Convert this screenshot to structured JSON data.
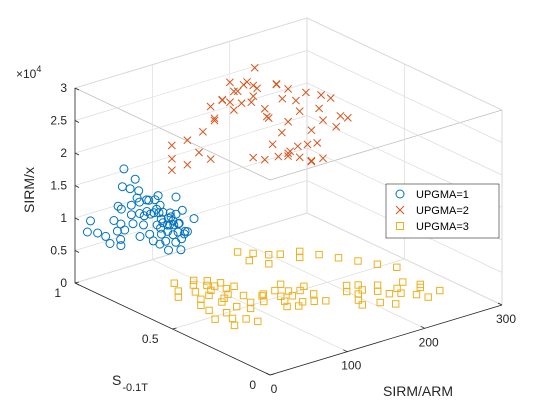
{
  "chart_data": {
    "type": "scatter",
    "title": "",
    "xlabel": "SIRM/ARM",
    "ylabel": "S",
    "ylabel_sub": "-0.1T",
    "zlabel": "SIRM/x",
    "z_exponent_label": "×10",
    "z_exponent_power": "4",
    "xlim": [
      0,
      300
    ],
    "ylim": [
      0,
      1
    ],
    "zlim": [
      0,
      30000
    ],
    "x_ticks": [
      "0",
      "100",
      "200",
      "300"
    ],
    "y_ticks": [
      "0",
      "0.5",
      "1"
    ],
    "z_ticks": [
      "0",
      "0.5",
      "1",
      "1.5",
      "2",
      "2.5",
      "3"
    ],
    "grid": true,
    "legend_position": "right",
    "series": [
      {
        "name": "UPGMA=1",
        "marker": "circle",
        "color": "#0072BD",
        "points": [
          [
            27,
            0.72,
            13600
          ],
          [
            33,
            0.68,
            12600
          ],
          [
            29,
            0.64,
            12000
          ],
          [
            36,
            0.7,
            12800
          ],
          [
            22,
            0.79,
            11300
          ],
          [
            40,
            0.74,
            13600
          ],
          [
            31,
            0.62,
            11700
          ],
          [
            45,
            0.7,
            12600
          ],
          [
            18,
            0.67,
            10500
          ],
          [
            38,
            0.59,
            12000
          ],
          [
            42,
            0.8,
            14100
          ],
          [
            26,
            0.56,
            10400
          ],
          [
            35,
            0.77,
            13000
          ],
          [
            48,
            0.66,
            12200
          ],
          [
            23,
            0.74,
            11800
          ],
          [
            30,
            0.83,
            13300
          ],
          [
            37,
            0.64,
            12700
          ],
          [
            44,
            0.61,
            11900
          ],
          [
            20,
            0.6,
            10000
          ],
          [
            28,
            0.69,
            12300
          ],
          [
            34,
            0.73,
            13400
          ],
          [
            39,
            0.67,
            12200
          ],
          [
            25,
            0.81,
            12300
          ],
          [
            47,
            0.75,
            13800
          ],
          [
            32,
            0.58,
            11600
          ],
          [
            43,
            0.72,
            13300
          ],
          [
            21,
            0.7,
            11000
          ],
          [
            36,
            0.86,
            15200
          ],
          [
            41,
            0.66,
            12900
          ],
          [
            29,
            0.76,
            12700
          ],
          [
            24,
            0.63,
            10800
          ],
          [
            46,
            0.69,
            12900
          ],
          [
            33,
            0.8,
            14100
          ],
          [
            38,
            0.72,
            13400
          ],
          [
            27,
            0.59,
            11100
          ],
          [
            31,
            0.88,
            15400
          ],
          [
            50,
            0.71,
            13100
          ],
          [
            35,
            0.61,
            12100
          ],
          [
            22,
            0.85,
            12700
          ],
          [
            40,
            0.78,
            14400
          ],
          [
            16,
            0.73,
            10400
          ],
          [
            44,
            0.64,
            12700
          ],
          [
            30,
            0.68,
            11900
          ],
          [
            37,
            0.82,
            15400
          ],
          [
            26,
            0.66,
            11400
          ],
          [
            42,
            0.59,
            12200
          ],
          [
            19,
            0.64,
            10400
          ],
          [
            34,
            0.66,
            12500
          ],
          [
            48,
            0.78,
            14200
          ],
          [
            28,
            0.78,
            12800
          ],
          [
            6,
            0.96,
            8200
          ],
          [
            9,
            0.92,
            8500
          ],
          [
            12,
            0.89,
            8300
          ],
          [
            10,
            0.86,
            7700
          ],
          [
            14,
            0.82,
            7800
          ],
          [
            15,
            0.98,
            9300
          ],
          [
            55,
            0.7,
            15500
          ],
          [
            58,
            0.62,
            13200
          ],
          [
            53,
            0.66,
            14100
          ],
          [
            60,
            0.72,
            12400
          ],
          [
            38,
            0.9,
            17600
          ],
          [
            45,
            0.87,
            16200
          ],
          [
            40,
            0.84,
            13900
          ],
          [
            11,
            0.81,
            9000
          ],
          [
            52,
            0.78,
            14700
          ],
          [
            24,
            0.86,
            10200
          ],
          [
            20,
            0.88,
            10600
          ],
          [
            17,
            0.85,
            9500
          ],
          [
            29,
            0.86,
            9100
          ],
          [
            33,
            0.91,
            11900
          ]
        ]
      },
      {
        "name": "UPGMA=2",
        "marker": "cross",
        "color": "#D95319",
        "points": [
          [
            140,
            0.8,
            26000
          ],
          [
            150,
            0.78,
            27200
          ],
          [
            160,
            0.77,
            28000
          ],
          [
            170,
            0.76,
            27700
          ],
          [
            155,
            0.82,
            24800
          ],
          [
            175,
            0.79,
            24500
          ],
          [
            130,
            0.8,
            23500
          ],
          [
            165,
            0.74,
            26500
          ],
          [
            145,
            0.76,
            24800
          ],
          [
            185,
            0.75,
            22500
          ],
          [
            200,
            0.73,
            25000
          ],
          [
            210,
            0.74,
            26000
          ],
          [
            220,
            0.72,
            22500
          ],
          [
            195,
            0.78,
            21500
          ],
          [
            230,
            0.7,
            19500
          ],
          [
            215,
            0.76,
            20500
          ],
          [
            240,
            0.7,
            22500
          ],
          [
            250,
            0.68,
            24000
          ],
          [
            225,
            0.7,
            17500
          ],
          [
            205,
            0.71,
            17000
          ],
          [
            235,
            0.69,
            17500
          ],
          [
            190,
            0.74,
            18200
          ],
          [
            255,
            0.65,
            21500
          ],
          [
            245,
            0.7,
            20500
          ],
          [
            120,
            0.82,
            21500
          ],
          [
            110,
            0.86,
            20000
          ],
          [
            100,
            0.9,
            19000
          ],
          [
            95,
            0.88,
            17400
          ],
          [
            105,
            0.84,
            16700
          ],
          [
            115,
            0.82,
            18500
          ],
          [
            90,
            0.86,
            16100
          ],
          [
            125,
            0.8,
            17400
          ],
          [
            180,
            0.78,
            26600
          ],
          [
            195,
            0.74,
            27300
          ],
          [
            205,
            0.78,
            26300
          ],
          [
            160,
            0.84,
            27400
          ],
          [
            150,
            0.84,
            25000
          ],
          [
            140,
            0.86,
            24100
          ],
          [
            135,
            0.82,
            22700
          ],
          [
            170,
            0.82,
            24100
          ],
          [
            215,
            0.72,
            24300
          ],
          [
            228,
            0.72,
            25100
          ],
          [
            240,
            0.69,
            24700
          ],
          [
            182,
            0.8,
            29400
          ],
          [
            172,
            0.8,
            27600
          ],
          [
            160,
            0.8,
            26600
          ],
          [
            190,
            0.78,
            23100
          ],
          [
            252,
            0.66,
            19800
          ],
          [
            262,
            0.64,
            21100
          ],
          [
            207,
            0.76,
            19100
          ],
          [
            210,
            0.74,
            16100
          ],
          [
            220,
            0.72,
            15400
          ],
          [
            230,
            0.7,
            14800
          ],
          [
            215,
            0.76,
            15200
          ],
          [
            200,
            0.75,
            15800
          ],
          [
            235,
            0.72,
            14200
          ],
          [
            195,
            0.8,
            14800
          ],
          [
            225,
            0.75,
            16500
          ],
          [
            240,
            0.68,
            15100
          ],
          [
            185,
            0.82,
            15200
          ]
        ]
      },
      {
        "name": "UPGMA=3",
        "marker": "square",
        "color": "#EDB120",
        "points": [
          [
            90,
            0.75,
            0
          ],
          [
            95,
            0.68,
            0
          ],
          [
            100,
            0.72,
            0
          ],
          [
            105,
            0.7,
            0
          ],
          [
            85,
            0.65,
            0
          ],
          [
            110,
            0.66,
            0
          ],
          [
            80,
            0.7,
            0
          ],
          [
            115,
            0.71,
            0
          ],
          [
            92,
            0.6,
            0
          ],
          [
            98,
            0.78,
            0
          ],
          [
            108,
            0.75,
            0
          ],
          [
            84,
            0.58,
            0
          ],
          [
            102,
            0.62,
            0
          ],
          [
            120,
            0.66,
            0
          ],
          [
            88,
            0.52,
            0
          ],
          [
            112,
            0.58,
            0
          ],
          [
            118,
            0.5,
            0
          ],
          [
            96,
            0.48,
            0
          ],
          [
            126,
            0.54,
            0
          ],
          [
            106,
            0.52,
            0
          ],
          [
            140,
            0.5,
            0
          ],
          [
            150,
            0.48,
            0
          ],
          [
            145,
            0.55,
            0
          ],
          [
            155,
            0.52,
            0
          ],
          [
            135,
            0.46,
            0
          ],
          [
            160,
            0.58,
            0
          ],
          [
            165,
            0.5,
            0
          ],
          [
            130,
            0.55,
            0
          ],
          [
            170,
            0.45,
            0
          ],
          [
            148,
            0.42,
            0
          ],
          [
            175,
            0.52,
            0
          ],
          [
            158,
            0.4,
            0
          ],
          [
            138,
            0.4,
            0
          ],
          [
            128,
            0.42,
            0
          ],
          [
            168,
            0.38,
            0
          ],
          [
            200,
            0.4,
            0
          ],
          [
            210,
            0.44,
            0
          ],
          [
            205,
            0.36,
            0
          ],
          [
            215,
            0.38,
            0
          ],
          [
            195,
            0.32,
            0
          ],
          [
            220,
            0.42,
            0
          ],
          [
            225,
            0.34,
            0
          ],
          [
            190,
            0.28,
            0
          ],
          [
            230,
            0.3,
            0
          ],
          [
            208,
            0.26,
            0
          ],
          [
            235,
            0.38,
            0
          ],
          [
            240,
            0.28,
            0
          ],
          [
            218,
            0.22,
            0
          ],
          [
            245,
            0.32,
            0
          ],
          [
            250,
            0.24,
            0
          ],
          [
            260,
            0.35,
            0
          ],
          [
            265,
            0.28,
            0
          ],
          [
            255,
            0.2,
            0
          ],
          [
            270,
            0.3,
            0
          ],
          [
            275,
            0.22,
            0
          ],
          [
            180,
            0.88,
            0
          ],
          [
            190,
            0.84,
            0
          ],
          [
            200,
            0.8,
            0
          ],
          [
            210,
            0.78,
            0
          ],
          [
            220,
            0.72,
            0
          ],
          [
            230,
            0.76,
            0
          ],
          [
            175,
            0.8,
            0
          ],
          [
            185,
            0.74,
            0
          ],
          [
            240,
            0.7,
            0
          ],
          [
            250,
            0.64,
            0
          ],
          [
            260,
            0.58,
            0
          ],
          [
            270,
            0.52,
            0
          ],
          [
            280,
            0.46,
            0
          ],
          [
            60,
            0.55,
            0
          ],
          [
            70,
            0.5,
            0
          ],
          [
            65,
            0.45,
            0
          ],
          [
            75,
            0.42,
            0
          ],
          [
            55,
            0.4,
            0
          ],
          [
            80,
            0.38,
            0
          ],
          [
            50,
            0.48,
            0
          ],
          [
            62,
            0.6,
            0
          ],
          [
            72,
            0.64,
            0
          ],
          [
            58,
            0.7,
            0
          ],
          [
            68,
            0.74,
            0
          ],
          [
            78,
            0.8,
            0
          ]
        ]
      }
    ]
  }
}
